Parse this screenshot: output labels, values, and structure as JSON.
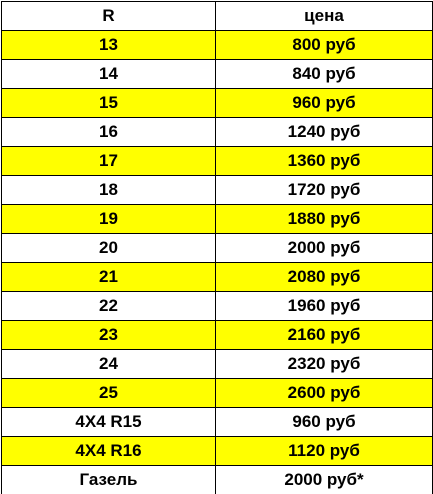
{
  "colors": {
    "highlight": "#ffff00",
    "plain": "#ffffff",
    "border": "#000000"
  },
  "table": {
    "headers": {
      "size": "R",
      "price": "цена"
    },
    "rows": [
      {
        "size": "13",
        "price": "800 руб",
        "highlight": true
      },
      {
        "size": "14",
        "price": "840 руб",
        "highlight": false
      },
      {
        "size": "15",
        "price": "960 руб",
        "highlight": true
      },
      {
        "size": "16",
        "price": "1240 руб",
        "highlight": false
      },
      {
        "size": "17",
        "price": "1360 руб",
        "highlight": true
      },
      {
        "size": "18",
        "price": "1720 руб",
        "highlight": false
      },
      {
        "size": "19",
        "price": "1880 руб",
        "highlight": true
      },
      {
        "size": "20",
        "price": "2000 руб",
        "highlight": false
      },
      {
        "size": "21",
        "price": "2080 руб",
        "highlight": true
      },
      {
        "size": "22",
        "price": "1960 руб",
        "highlight": false
      },
      {
        "size": "23",
        "price": "2160 руб",
        "highlight": true
      },
      {
        "size": "24",
        "price": "2320 руб",
        "highlight": false
      },
      {
        "size": "25",
        "price": "2600 руб",
        "highlight": true
      },
      {
        "size": "4X4 R15",
        "price": "960 руб",
        "highlight": false
      },
      {
        "size": "4X4 R16",
        "price": "1120 руб",
        "highlight": true
      },
      {
        "size": "Газель",
        "price": "2000 руб*",
        "highlight": false
      }
    ]
  }
}
